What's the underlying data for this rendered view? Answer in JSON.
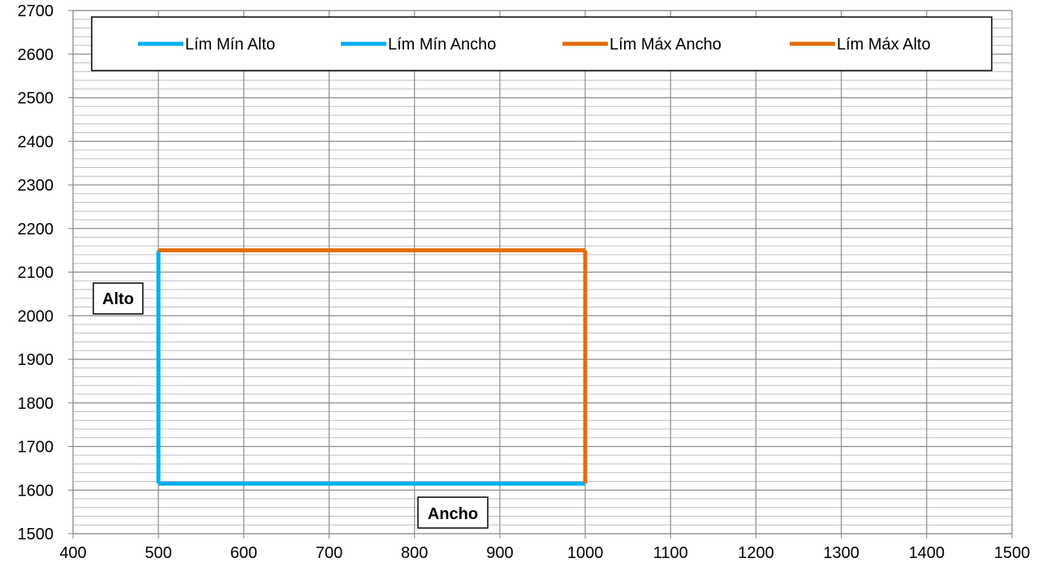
{
  "chart_data": {
    "type": "line",
    "title": "",
    "xlim": [
      400,
      1500
    ],
    "ylim": [
      1500,
      2700
    ],
    "x_major_step": 100,
    "y_major_step": 100,
    "y_minor_step": 20,
    "x_ticks": [
      400,
      500,
      600,
      700,
      800,
      900,
      1000,
      1100,
      1200,
      1300,
      1400,
      1500
    ],
    "y_ticks": [
      1500,
      1600,
      1700,
      1800,
      1900,
      2000,
      2100,
      2200,
      2300,
      2400,
      2500,
      2600,
      2700
    ],
    "grid": true,
    "legend_position": "top",
    "series": [
      {
        "name": "Lím Mín Alto",
        "color": "#00b0f0",
        "points": [
          [
            500,
            1615
          ],
          [
            1000,
            1615
          ]
        ]
      },
      {
        "name": "Lím Mín Ancho",
        "color": "#00b0f0",
        "points": [
          [
            500,
            1615
          ],
          [
            500,
            2150
          ]
        ]
      },
      {
        "name": "Lím Máx Ancho",
        "color": "#e36c0a",
        "points": [
          [
            1000,
            1615
          ],
          [
            1000,
            2150
          ]
        ]
      },
      {
        "name": "Lím Máx Alto",
        "color": "#e36c0a",
        "points": [
          [
            500,
            2150
          ],
          [
            1000,
            2150
          ]
        ]
      }
    ],
    "annotations": {
      "ylabel": "Alto",
      "xlabel": "Ancho"
    }
  }
}
